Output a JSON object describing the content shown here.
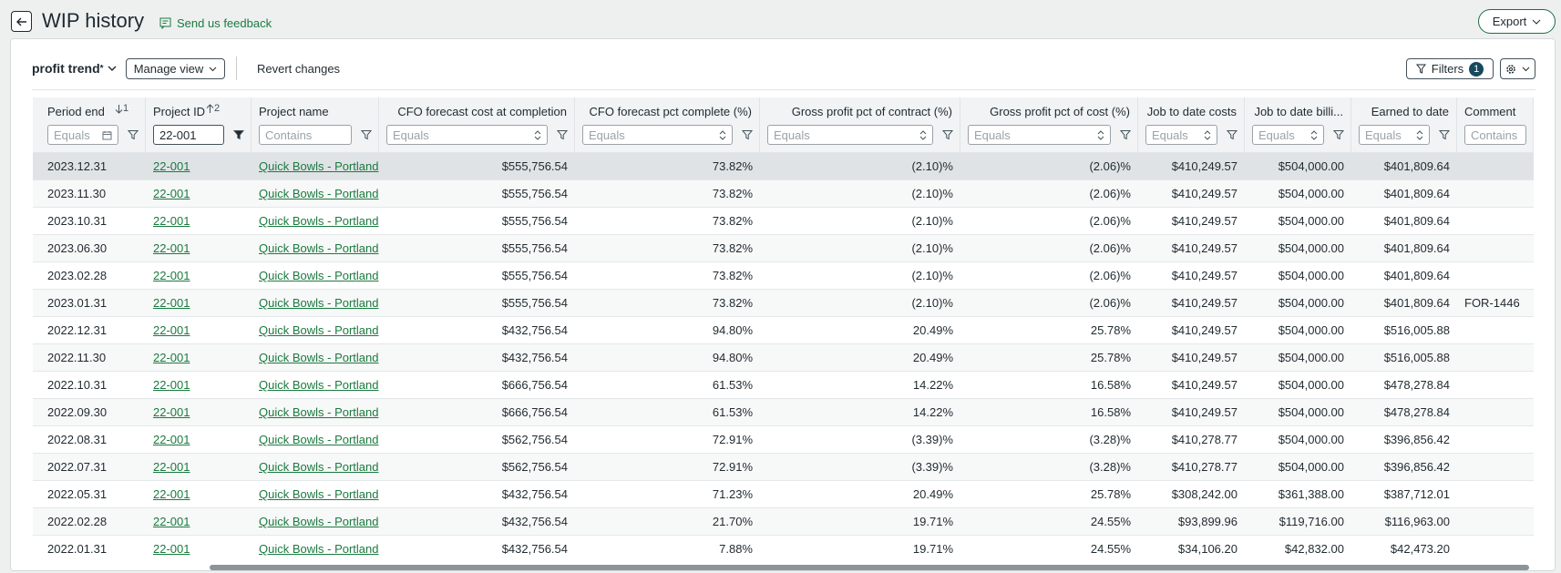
{
  "header": {
    "title": "WIP history",
    "feedback": "Send us feedback",
    "export": "Export"
  },
  "toolbar": {
    "view_name": "profit trend",
    "modified_mark": "*",
    "manage_view": "Manage view",
    "revert": "Revert changes",
    "filters": "Filters",
    "filter_count": "1"
  },
  "table": {
    "columns": [
      {
        "label": "Period end",
        "sort_order": "1",
        "filter_placeholder": "Equals"
      },
      {
        "label": "Project ID",
        "sort_order": "2",
        "filter_value": "22-001"
      },
      {
        "label": "Project name",
        "filter_placeholder": "Contains"
      },
      {
        "label": "CFO forecast cost at completion",
        "filter_placeholder": "Equals"
      },
      {
        "label": "CFO forecast pct complete (%)",
        "filter_placeholder": "Equals"
      },
      {
        "label": "Gross profit pct of contract (%)",
        "filter_placeholder": "Equals"
      },
      {
        "label": "Gross profit pct of cost (%)",
        "filter_placeholder": "Equals"
      },
      {
        "label": "Job to date costs",
        "filter_placeholder": "Equals"
      },
      {
        "label": "Job to date billi...",
        "filter_placeholder": "Equals"
      },
      {
        "label": "Earned to date",
        "filter_placeholder": "Equals"
      },
      {
        "label": "Comment",
        "filter_placeholder": "Contains"
      }
    ],
    "rows": [
      [
        "2023.12.31",
        "22-001",
        "Quick Bowls - Portland",
        "$555,756.54",
        "73.82%",
        "(2.10)%",
        "(2.06)%",
        "$410,249.57",
        "$504,000.00",
        "$401,809.64",
        null
      ],
      [
        "2023.11.30",
        "22-001",
        "Quick Bowls - Portland",
        "$555,756.54",
        "73.82%",
        "(2.10)%",
        "(2.06)%",
        "$410,249.57",
        "$504,000.00",
        "$401,809.64",
        null
      ],
      [
        "2023.10.31",
        "22-001",
        "Quick Bowls - Portland",
        "$555,756.54",
        "73.82%",
        "(2.10)%",
        "(2.06)%",
        "$410,249.57",
        "$504,000.00",
        "$401,809.64",
        null
      ],
      [
        "2023.06.30",
        "22-001",
        "Quick Bowls - Portland",
        "$555,756.54",
        "73.82%",
        "(2.10)%",
        "(2.06)%",
        "$410,249.57",
        "$504,000.00",
        "$401,809.64",
        null
      ],
      [
        "2023.02.28",
        "22-001",
        "Quick Bowls - Portland",
        "$555,756.54",
        "73.82%",
        "(2.10)%",
        "(2.06)%",
        "$410,249.57",
        "$504,000.00",
        "$401,809.64",
        null
      ],
      [
        "2023.01.31",
        "22-001",
        "Quick Bowls - Portland",
        "$555,756.54",
        "73.82%",
        "(2.10)%",
        "(2.06)%",
        "$410,249.57",
        "$504,000.00",
        "$401,809.64",
        "FOR-1446"
      ],
      [
        "2022.12.31",
        "22-001",
        "Quick Bowls - Portland",
        "$432,756.54",
        "94.80%",
        "20.49%",
        "25.78%",
        "$410,249.57",
        "$504,000.00",
        "$516,005.88",
        null
      ],
      [
        "2022.11.30",
        "22-001",
        "Quick Bowls - Portland",
        "$432,756.54",
        "94.80%",
        "20.49%",
        "25.78%",
        "$410,249.57",
        "$504,000.00",
        "$516,005.88",
        null
      ],
      [
        "2022.10.31",
        "22-001",
        "Quick Bowls - Portland",
        "$666,756.54",
        "61.53%",
        "14.22%",
        "16.58%",
        "$410,249.57",
        "$504,000.00",
        "$478,278.84",
        null
      ],
      [
        "2022.09.30",
        "22-001",
        "Quick Bowls - Portland",
        "$666,756.54",
        "61.53%",
        "14.22%",
        "16.58%",
        "$410,249.57",
        "$504,000.00",
        "$478,278.84",
        null
      ],
      [
        "2022.08.31",
        "22-001",
        "Quick Bowls - Portland",
        "$562,756.54",
        "72.91%",
        "(3.39)%",
        "(3.28)%",
        "$410,278.77",
        "$504,000.00",
        "$396,856.42",
        null
      ],
      [
        "2022.07.31",
        "22-001",
        "Quick Bowls - Portland",
        "$562,756.54",
        "72.91%",
        "(3.39)%",
        "(3.28)%",
        "$410,278.77",
        "$504,000.00",
        "$396,856.42",
        null
      ],
      [
        "2022.05.31",
        "22-001",
        "Quick Bowls - Portland",
        "$432,756.54",
        "71.23%",
        "20.49%",
        "25.78%",
        "$308,242.00",
        "$361,388.00",
        "$387,712.01",
        null
      ],
      [
        "2022.02.28",
        "22-001",
        "Quick Bowls - Portland",
        "$432,756.54",
        "21.70%",
        "19.71%",
        "24.55%",
        "$93,899.96",
        "$119,716.00",
        "$116,963.00",
        null
      ],
      [
        "2022.01.31",
        "22-001",
        "Quick Bowls - Portland",
        "$432,756.54",
        "7.88%",
        "19.71%",
        "24.55%",
        "$34,106.20",
        "$42,832.00",
        "$42,473.20",
        null
      ]
    ]
  }
}
